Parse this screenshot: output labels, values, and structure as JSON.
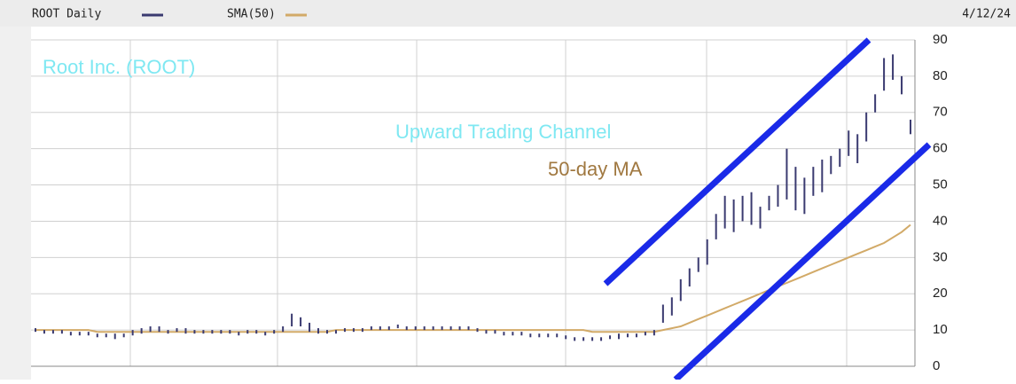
{
  "chart_data": {
    "type": "stock",
    "legend_left": "ROOT Daily",
    "date": "4/12/24",
    "annotations": [
      "Root Inc. (ROOT)",
      "Upward Trading Channel",
      "50-day MA"
    ],
    "ylim": [
      0,
      90
    ],
    "yticks": [
      0,
      10,
      20,
      30,
      40,
      50,
      60,
      70,
      80,
      90
    ],
    "grid": true,
    "series": [
      {
        "name": "ROOT Daily",
        "color": "#3a3a70",
        "low": [
          9.5,
          9,
          9,
          9,
          8.5,
          8.5,
          8.5,
          8,
          8,
          7.5,
          8,
          8.5,
          9,
          9.5,
          9.5,
          9,
          9.5,
          9,
          9,
          9,
          9,
          9,
          9,
          8.5,
          9,
          9,
          8.5,
          9,
          9.5,
          11,
          11,
          9.5,
          9,
          9,
          9,
          9.5,
          9.5,
          9.5,
          10,
          10,
          10,
          10.5,
          10,
          10,
          10,
          10,
          10,
          10,
          10,
          10,
          9.5,
          9,
          9,
          8.5,
          8.5,
          8.5,
          8,
          8,
          8,
          8,
          7.5,
          7,
          7,
          7,
          7,
          7.5,
          7.5,
          8,
          8,
          8.5,
          8.5,
          12,
          14,
          18,
          22,
          26,
          28,
          35,
          38,
          37,
          40,
          39,
          38,
          43,
          44,
          46,
          43,
          42,
          47,
          48,
          53,
          55,
          58,
          56,
          62,
          70,
          76,
          79,
          75,
          64
        ],
        "high": [
          10.5,
          10,
          10,
          10,
          9.5,
          9.5,
          9.5,
          9,
          9,
          9,
          9,
          10,
          10.5,
          11,
          11,
          10,
          10.5,
          10.5,
          10,
          10,
          10,
          10,
          10,
          9.5,
          10,
          10,
          9.5,
          10,
          11,
          14.5,
          13.5,
          12,
          10.5,
          10,
          10,
          10.5,
          10.5,
          10.5,
          11,
          11,
          11,
          11.5,
          11,
          11,
          11,
          11,
          11,
          11,
          11,
          11,
          10.5,
          10,
          10,
          9.5,
          9.5,
          9.5,
          9,
          9,
          9,
          9,
          8.5,
          8,
          8,
          8,
          8,
          8.5,
          9,
          9,
          9,
          9.5,
          10,
          17,
          19,
          24,
          27,
          30,
          35,
          42,
          47,
          46,
          47,
          48,
          44,
          47,
          50,
          60,
          55,
          52,
          55,
          57,
          58,
          60,
          65,
          64,
          70,
          75,
          85,
          86,
          80,
          68
        ]
      },
      {
        "name": "SMA(50)",
        "color": "#d2aa68",
        "values": [
          10,
          10,
          10,
          10,
          10,
          10,
          10,
          9.5,
          9.5,
          9.5,
          9.5,
          9.5,
          9.5,
          9.5,
          9.5,
          9.5,
          9.5,
          9.5,
          9.5,
          9.5,
          9.5,
          9.5,
          9.5,
          9.5,
          9.5,
          9.5,
          9.5,
          9.5,
          9.5,
          9.5,
          9.5,
          9.5,
          9.5,
          9.5,
          10,
          10,
          10,
          10,
          10,
          10,
          10,
          10,
          10,
          10,
          10,
          10,
          10,
          10,
          10,
          10,
          10,
          10,
          10,
          10,
          10,
          10,
          10,
          10,
          10,
          10,
          10,
          10,
          10,
          9.5,
          9.5,
          9.5,
          9.5,
          9.5,
          9.5,
          9.5,
          9.5,
          10,
          10.5,
          11,
          12,
          13,
          14,
          15,
          16,
          17,
          18,
          19,
          20,
          21,
          22,
          23,
          24,
          25,
          26,
          27,
          28,
          29,
          30,
          31,
          32,
          33,
          34,
          35.5,
          37,
          39
        ]
      }
    ]
  }
}
